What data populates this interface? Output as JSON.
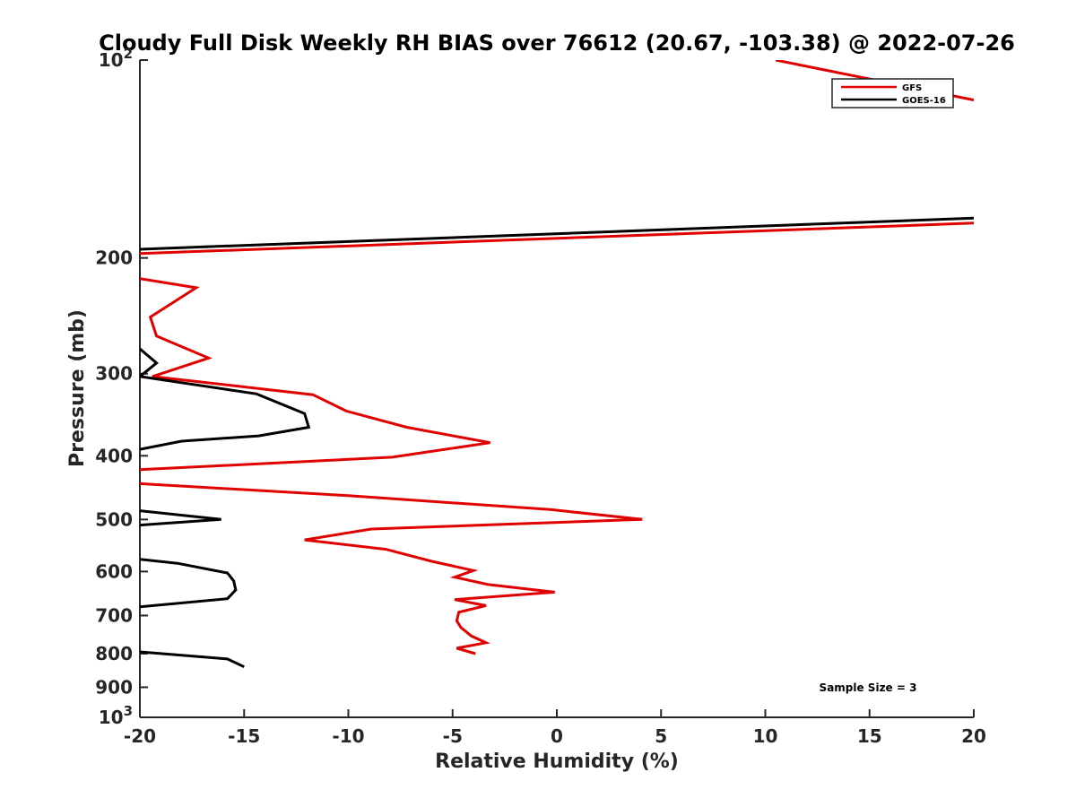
{
  "chart_data": {
    "type": "line",
    "title": "Cloudy Full Disk Weekly RH BIAS over 76612 (20.67, -103.38) @ 2022-07-26",
    "xlabel": "Relative Humidity (%)",
    "ylabel": "Pressure (mb)",
    "xlim": [
      -20,
      20
    ],
    "ylim": [
      100,
      1000
    ],
    "yscale": "log",
    "y_reversed": true,
    "xticks": [
      -20,
      -15,
      -10,
      -5,
      0,
      5,
      10,
      15,
      20
    ],
    "xtick_labels": [
      "-20",
      "-15",
      "-10",
      "-5",
      "0",
      "5",
      "10",
      "15",
      "20"
    ],
    "yticks": [
      {
        "value": 100,
        "base": "10",
        "exp": "2"
      },
      {
        "value": 200,
        "label": "200"
      },
      {
        "value": 300,
        "label": "300"
      },
      {
        "value": 400,
        "label": "400"
      },
      {
        "value": 500,
        "label": "500"
      },
      {
        "value": 600,
        "label": "600"
      },
      {
        "value": 700,
        "label": "700"
      },
      {
        "value": 800,
        "label": "800"
      },
      {
        "value": 900,
        "label": "900"
      },
      {
        "value": 1000,
        "base": "10",
        "exp": "3"
      }
    ],
    "legend_position": "top-right",
    "annotation": "Sample Size = 3",
    "series": [
      {
        "name": "GFS",
        "color": "#e00000",
        "segments": [
          [
            [
              10.5,
              100
            ],
            [
              20,
              115
            ]
          ],
          [
            [
              -20,
              197
            ],
            [
              20,
              177
            ]
          ],
          [
            [
              -20,
              215
            ],
            [
              -17.3,
              222
            ],
            [
              -19.5,
              246
            ],
            [
              -19.2,
              263
            ],
            [
              -16.7,
              284
            ],
            [
              -19.4,
              303
            ],
            [
              -11.7,
              323
            ],
            [
              -10.1,
              342
            ],
            [
              -7.2,
              362
            ],
            [
              -3.2,
              382
            ],
            [
              -7.9,
              402
            ],
            [
              -20,
              420
            ]
          ],
          [
            [
              -20,
              441
            ],
            [
              -10,
              460
            ],
            [
              -0.3,
              483
            ],
            [
              4.1,
              500
            ],
            [
              -8.9,
              517
            ],
            [
              -12.1,
              537
            ],
            [
              -8.2,
              555
            ],
            [
              -6,
              579
            ],
            [
              -4,
              598
            ],
            [
              -4.9,
              612
            ],
            [
              -3.3,
              628
            ],
            [
              -0.1,
              645
            ],
            [
              -4.9,
              662
            ],
            [
              -3.4,
              676
            ],
            [
              -4.7,
              692
            ],
            [
              -4.8,
              713
            ],
            [
              -4.6,
              730
            ],
            [
              -4.1,
              752
            ],
            [
              -3.4,
              770
            ],
            [
              -4.8,
              785
            ],
            [
              -3.9,
              800
            ]
          ]
        ]
      },
      {
        "name": "GOES-16",
        "color": "#000000",
        "segments": [
          [
            [
              -20,
              194
            ],
            [
              20,
              174
            ]
          ],
          [
            [
              -20,
              275
            ],
            [
              -19.2,
              289
            ],
            [
              -20,
              303
            ]
          ],
          [
            [
              -20,
              303
            ],
            [
              -14.4,
              322
            ],
            [
              -12.1,
              345
            ],
            [
              -11.9,
              362
            ],
            [
              -14.3,
              373
            ],
            [
              -18,
              380
            ],
            [
              -20,
              391
            ]
          ],
          [
            [
              -20,
              485
            ],
            [
              -16.1,
              500
            ],
            [
              -20,
              510
            ]
          ],
          [
            [
              -20,
              575
            ],
            [
              -18.2,
              583
            ],
            [
              -15.8,
              603
            ],
            [
              -15.5,
              620
            ],
            [
              -15.4,
              640
            ],
            [
              -15.8,
              660
            ],
            [
              -20,
              679
            ]
          ],
          [
            [
              -20,
              795
            ],
            [
              -15.8,
              815
            ],
            [
              -15,
              838
            ]
          ]
        ]
      }
    ]
  }
}
